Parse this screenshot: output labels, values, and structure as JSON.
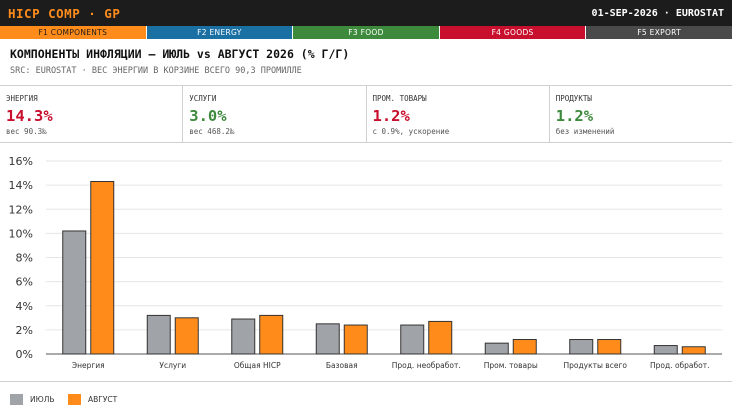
{
  "header": {
    "title": "HICP COMP · GP",
    "meta": "01-SEP-2026 · EUROSTAT"
  },
  "function_keys": [
    {
      "label": "F1 COMPONENTS",
      "color": "#ff8c1a",
      "text_color": "#1c1c1c"
    },
    {
      "label": "F2 ENERGY",
      "color": "#1a6fa3",
      "text_color": "#ffffff"
    },
    {
      "label": "F3 FOOD",
      "color": "#3d8a3d",
      "text_color": "#ffffff"
    },
    {
      "label": "F4 GOODS",
      "color": "#c8102e",
      "text_color": "#ffffff"
    },
    {
      "label": "F5 EXPORT",
      "color": "#4a4a4a",
      "text_color": "#ffffff"
    }
  ],
  "page": {
    "heading": "КОМПОНЕНТЫ ИНФЛЯЦИИ — ИЮЛЬ vs АВГУСТ 2026 (% Г/Г)",
    "subheading": "SRC: EUROSTAT · ВЕС ЭНЕРГИИ В КОРЗИНЕ ВСЕГО 90,3 ПРОМИЛЛЕ"
  },
  "kpis": [
    {
      "label": "ЭНЕРГИЯ",
      "value": "14.3%",
      "note": "вес 90.3‰",
      "color": "#c8102e"
    },
    {
      "label": "УСЛУГИ",
      "value": "3.0%",
      "note": "вес 468.2‰",
      "color": "#3d8a3d"
    },
    {
      "label": "ПРОМ. ТОВАРЫ",
      "value": "1.2%",
      "note": "с 0.9%, ускорение",
      "color": "#c8102e"
    },
    {
      "label": "ПРОДУКТЫ",
      "value": "1.2%",
      "note": "без изменений",
      "color": "#3d8a3d"
    }
  ],
  "chart_data": {
    "type": "bar",
    "categories": [
      "Энергия",
      "Услуги",
      "Общая HICP",
      "Базовая",
      "Прод. необработ.",
      "Пром. товары",
      "Продукты всего",
      "Прод. обработ."
    ],
    "series": [
      {
        "name": "ИЮЛЬ",
        "color": "#a0a3a8",
        "values": [
          10.2,
          3.2,
          2.9,
          2.5,
          2.4,
          0.9,
          1.2,
          0.7
        ]
      },
      {
        "name": "АВГУСТ",
        "color": "#ff8c1a",
        "values": [
          14.3,
          3.0,
          3.2,
          2.4,
          2.7,
          1.2,
          1.2,
          0.6
        ]
      }
    ],
    "yticks": [
      "0%",
      "2%",
      "4%",
      "6%",
      "8%",
      "10%",
      "12%",
      "14%",
      "16%"
    ],
    "ylim": [
      0,
      16
    ],
    "grid": true,
    "legend_position": "bottom-left"
  }
}
